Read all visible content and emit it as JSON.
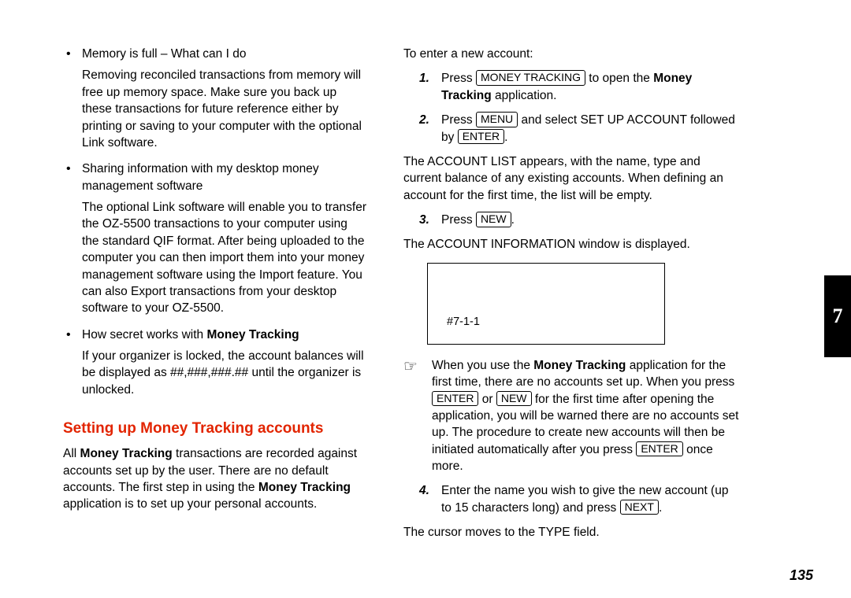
{
  "left": {
    "bullets": [
      {
        "title": "Memory is full – What can I do",
        "body": "Removing reconciled transactions from memory will free up memory space. Make sure you back up these transactions for future reference either by printing or saving to your computer with the optional Link software."
      },
      {
        "title": "Sharing information with my desktop money management software",
        "body": "The optional Link software will enable you to transfer the OZ-5500 transactions to your computer using the standard QIF format. After being uploaded to the computer you can then import them into your money management software using the Import feature. You can also Export transactions from your desktop software to your OZ-5500."
      },
      {
        "title_pre": "How secret works with ",
        "title_bold": "Money Tracking",
        "body": "If your organizer is locked, the account balances will be displayed as ##,###,###.## until the organizer is unlocked."
      }
    ],
    "heading": "Setting up Money Tracking accounts",
    "heading_color": "#e22400",
    "intro_parts": {
      "p1": "All ",
      "b1": "Money Tracking",
      "p2": " transactions are recorded against accounts set up by the user. There are no default accounts. The first step in using the ",
      "b2": "Money Tracking",
      "p3": " application is to set up your personal accounts."
    }
  },
  "right": {
    "lead": "To enter a new account:",
    "steps12": {
      "s1": {
        "num": "1.",
        "pre": "Press ",
        "key": "MONEY TRACKING",
        "mid": " to open the ",
        "bold": "Money Tracking",
        "post": " application."
      },
      "s2": {
        "num": "2.",
        "pre": "Press ",
        "key1": "MENU",
        "mid": " and select SET UP ACCOUNT followed by ",
        "key2": "ENTER",
        "post": "."
      }
    },
    "after12": "The ACCOUNT LIST appears, with the name, type and current balance of any existing accounts. When defining an account for the first time, the list will be empty.",
    "step3": {
      "num": "3.",
      "pre": "Press ",
      "key": "NEW",
      "post": "."
    },
    "after3": "The ACCOUNT INFORMATION window is displayed.",
    "figure_label": "#7-1-1",
    "note": {
      "icon": "☞",
      "p1": "When you use the ",
      "b1": "Money Tracking",
      "p2": " application for the first time, there are no accounts set up. When you press ",
      "key1": "ENTER",
      "p3": " or ",
      "key2": "NEW",
      "p4": " for the first time after opening the application, you will be warned there are no accounts set up. The procedure to create new accounts will then be initiated automatically after you press ",
      "key3": "ENTER",
      "p5": " once more."
    },
    "step4": {
      "num": "4.",
      "pre": "Enter the name you wish to give the new account (up to 15 characters long) and press ",
      "key": "NEXT",
      "post": "."
    },
    "after4": "The cursor moves to the TYPE field."
  },
  "chapter_tab": "7",
  "page_number": "135"
}
